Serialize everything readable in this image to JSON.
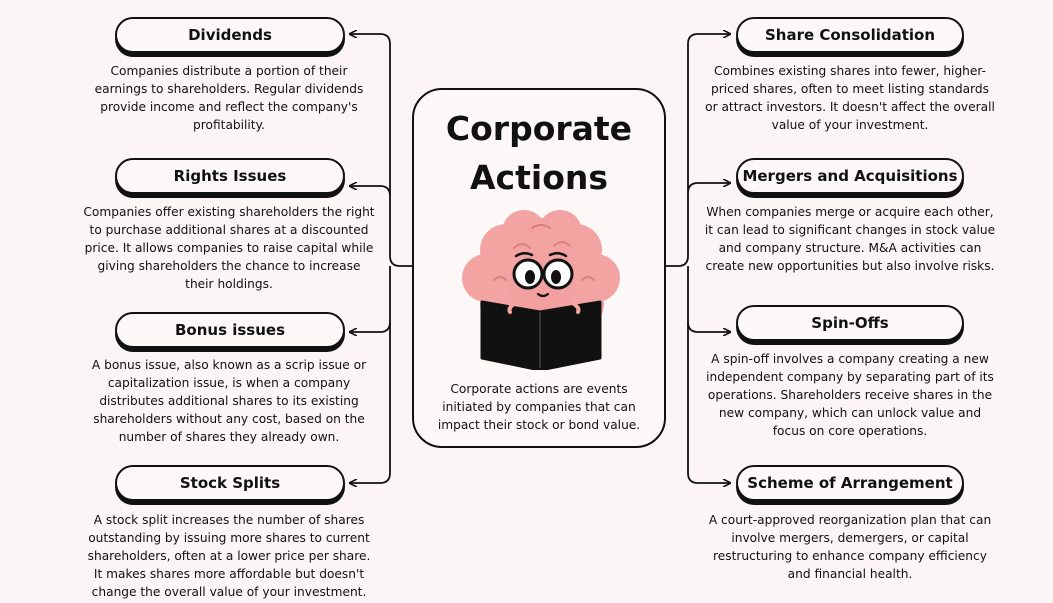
{
  "center": {
    "title_line1": "Corporate",
    "title_line2": "Actions",
    "description": "Corporate actions are events initiated by companies that can impact their stock or bond value."
  },
  "left": [
    {
      "title": "Dividends",
      "description": "Companies distribute a portion of their earnings to shareholders. Regular dividends provide income and reflect the company's profitability."
    },
    {
      "title": "Rights Issues",
      "description": "Companies offer existing shareholders the right to purchase additional shares at a discounted price. It allows companies to raise capital while giving shareholders the chance to increase their holdings."
    },
    {
      "title": "Bonus issues",
      "description": "A bonus issue, also known as a scrip issue or capitalization issue, is when a company distributes additional shares to its existing shareholders without any cost, based on the number of shares they already own."
    },
    {
      "title": "Stock Splits",
      "description": "A stock split increases the number of shares outstanding by issuing more shares to current shareholders, often at a lower price per share. It makes shares more affordable but doesn't change the overall value of your investment."
    }
  ],
  "right": [
    {
      "title": "Share Consolidation",
      "description": "Combines existing shares into fewer, higher-priced shares, often to meet listing standards or attract investors. It doesn't affect the overall value of your investment."
    },
    {
      "title": "Mergers and Acquisitions",
      "description": "When companies merge or acquire each other, it can lead to significant changes in stock value and company structure. M&A activities can create new opportunities but also involve risks."
    },
    {
      "title": "Spin-Offs",
      "description": "A spin-off involves a company creating a new independent company by separating part of its operations. Shareholders receive shares in the new company, which can unlock value and focus on core operations."
    },
    {
      "title": "Scheme of Arrangement",
      "description": "A court-approved reorganization plan that can involve mergers, demergers, or capital restructuring to enhance company efficiency and financial health."
    }
  ],
  "colors": {
    "background": "#fbf5f5",
    "outline": "#111111",
    "brain": "#f4a3a3",
    "book": "#111111"
  }
}
